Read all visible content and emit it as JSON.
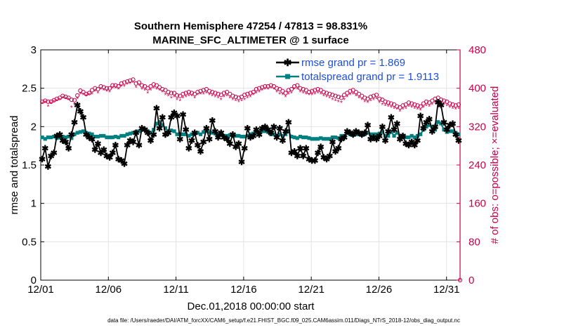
{
  "chart_data": {
    "type": "line",
    "title_line1": "Southern Hemisphere 47254 / 47813 = 98.831%",
    "title_line2": "MARINE_SFC_ALTIMETER @ 1 surface",
    "xlabel": "Dec.01,2018 00:00:00 start",
    "ylabel_left": "rmse and totalspread",
    "ylabel_right": "# of obs: o=possible; ×=evaluated",
    "footer": "data file: /Users/raeder/DAI/ATM_forcXX/CAM6_setup/f.e21.FHIST_BGC.f09_025.CAM6assim.011/Diags_NTrS_2018-12/obs_diag_output.nc",
    "x_ticks": [
      "12/01",
      "12/06",
      "12/11",
      "12/16",
      "12/21",
      "12/26",
      "12/31"
    ],
    "x_tick_days": [
      1,
      6,
      11,
      16,
      21,
      26,
      31
    ],
    "xlim": [
      1,
      32
    ],
    "ylim_left": [
      0,
      3
    ],
    "ylim_right": [
      0,
      480
    ],
    "y_ticks_left": [
      "0",
      "0.5",
      "1",
      "1.5",
      "2",
      "2.5",
      "3"
    ],
    "y_ticks_right": [
      "0",
      "80",
      "160",
      "240",
      "320",
      "400",
      "480"
    ],
    "grid": true,
    "legend_position": "top-right",
    "colors": {
      "rmse": "#000000",
      "spread": "#008080",
      "obs": "#c8004a",
      "legend_text": "#1d4fd6"
    },
    "series": [
      {
        "name": "rmse",
        "legend": "rmse grand pr = 1.869",
        "color": "#000000",
        "values": [
          1.58,
          1.72,
          1.48,
          1.62,
          1.66,
          1.88,
          1.9,
          1.82,
          1.8,
          1.72,
          1.9,
          2.06,
          2.28,
          2.2,
          2.12,
          1.9,
          1.86,
          1.84,
          1.7,
          1.78,
          1.66,
          1.7,
          1.62,
          1.6,
          1.66,
          1.76,
          1.58,
          1.56,
          1.52,
          1.76,
          1.82,
          1.8,
          1.92,
          1.76,
          1.98,
          1.96,
          1.92,
          1.82,
          1.9,
          2.24,
          1.98,
          2.12,
          1.9,
          1.92,
          2.12,
          2.18,
          2.14,
          1.84,
          2.16,
          1.96,
          1.72,
          1.82,
          1.92,
          1.76,
          1.68,
          1.8,
          1.98,
          1.84,
          2.08,
          1.94,
          1.86,
          1.92,
          1.86,
          1.84,
          1.78,
          1.9,
          1.74,
          1.78,
          1.54,
          1.72,
          1.98,
          1.86,
          1.88,
          1.96,
          1.9,
          1.98,
          2.0,
          1.96,
          1.92,
          2.0,
          1.86,
          1.98,
          1.82,
          1.94,
          2.06,
          1.66,
          1.68,
          1.62,
          1.72,
          1.62,
          1.72,
          1.58,
          1.56,
          1.56,
          1.66,
          1.74,
          1.6,
          1.58,
          1.62,
          1.8,
          1.68,
          1.72,
          1.84,
          1.86,
          1.94,
          1.92,
          1.9,
          1.94,
          1.92,
          1.9,
          1.92,
          2.02,
          1.84,
          1.86,
          1.84,
          1.88,
          2.0,
          1.82,
          1.94,
          2.12,
          1.96,
          2.04,
          1.84,
          1.88,
          1.78,
          1.76,
          1.8,
          1.76,
          1.82,
          2.14,
          1.98,
          2.06,
          2.1,
          1.94,
          2.0,
          2.32,
          2.28,
          2.06,
          1.96,
          2.02,
          2.04,
          1.9,
          1.82
        ]
      },
      {
        "name": "totalspread",
        "legend": "totalspread grand pr = 1.9113",
        "color": "#008080",
        "values": [
          1.86,
          1.84,
          1.86,
          1.86,
          1.87,
          1.85,
          1.86,
          1.87,
          1.86,
          1.87,
          1.85,
          1.9,
          1.92,
          1.93,
          1.94,
          1.92,
          1.91,
          1.9,
          1.87,
          1.87,
          1.88,
          1.88,
          1.86,
          1.86,
          1.86,
          1.87,
          1.86,
          1.88,
          1.88,
          1.9,
          1.91,
          1.92,
          1.93,
          1.94,
          1.96,
          1.96,
          1.94,
          1.92,
          1.96,
          2.04,
          2.06,
          2.02,
          1.98,
          1.94,
          1.95,
          1.94,
          1.9,
          1.9,
          1.9,
          1.9,
          1.88,
          1.9,
          1.91,
          1.92,
          1.9,
          1.93,
          1.94,
          1.93,
          1.92,
          1.91,
          1.9,
          1.89,
          1.88,
          1.88,
          1.89,
          1.88,
          1.88,
          1.88,
          1.87,
          1.87,
          1.88,
          1.9,
          1.91,
          1.92,
          1.93,
          1.94,
          1.94,
          1.93,
          1.9,
          1.9,
          1.88,
          1.9,
          1.88,
          1.9,
          1.94,
          1.87,
          1.86,
          1.85,
          1.87,
          1.86,
          1.86,
          1.85,
          1.84,
          1.84,
          1.84,
          1.85,
          1.84,
          1.84,
          1.84,
          1.86,
          1.86,
          1.85,
          1.88,
          1.88,
          1.92,
          1.9,
          1.89,
          1.9,
          1.9,
          1.89,
          1.9,
          1.92,
          1.9,
          1.9,
          1.9,
          1.91,
          1.93,
          1.88,
          1.88,
          1.93,
          1.88,
          1.92,
          1.88,
          1.88,
          1.86,
          1.86,
          1.88,
          1.86,
          1.88,
          1.9,
          1.96,
          2.0,
          2.02,
          2.0,
          1.96,
          2.06,
          2.04,
          1.96,
          1.93,
          1.94,
          1.94,
          1.92,
          1.9
        ]
      },
      {
        "name": "obs_possible",
        "color": "#c8004a",
        "values": [
          372,
          374,
          372,
          372,
          375,
          378,
          380,
          384,
          382,
          380,
          376,
          375,
          385,
          395,
          392,
          388,
          390,
          396,
          400,
          398,
          404,
          402,
          400,
          400,
          406,
          406,
          404,
          410,
          412,
          414,
          416,
          418,
          410,
          412,
          406,
          404,
          400,
          404,
          408,
          406,
          402,
          398,
          396,
          392,
          390,
          390,
          385,
          384,
          388,
          390,
          392,
          390,
          388,
          392,
          394,
          396,
          398,
          394,
          392,
          390,
          388,
          386,
          390,
          392,
          388,
          384,
          382,
          380,
          382,
          386,
          388,
          390,
          392,
          398,
          400,
          402,
          404,
          404,
          406,
          404,
          400,
          398,
          394,
          390,
          396,
          398,
          404,
          406,
          400,
          398,
          396,
          392,
          394,
          396,
          398,
          396,
          392,
          390,
          388,
          386,
          384,
          382,
          380,
          386,
          390,
          394,
          396,
          392,
          388,
          384,
          380,
          378,
          382,
          384,
          386,
          378,
          376,
          372,
          370,
          368,
          366,
          362,
          360,
          364,
          366,
          370,
          368,
          366,
          364,
          362,
          368,
          372,
          370,
          374,
          378,
          380,
          376,
          374,
          372,
          368,
          366,
          364,
          366
        ]
      },
      {
        "name": "obs_evaluated",
        "color": "#c8004a",
        "values": [
          368,
          370,
          362,
          368,
          372,
          374,
          376,
          380,
          378,
          376,
          360,
          366,
          378,
          388,
          386,
          384,
          386,
          388,
          394,
          390,
          398,
          396,
          394,
          392,
          400,
          400,
          398,
          404,
          404,
          408,
          410,
          412,
          402,
          406,
          398,
          396,
          390,
          396,
          400,
          398,
          396,
          392,
          386,
          384,
          380,
          382,
          376,
          374,
          380,
          382,
          384,
          384,
          380,
          386,
          388,
          388,
          390,
          386,
          384,
          382,
          380,
          376,
          382,
          384,
          380,
          376,
          374,
          372,
          374,
          376,
          380,
          382,
          386,
          390,
          392,
          396,
          398,
          398,
          400,
          398,
          392,
          388,
          386,
          382,
          388,
          390,
          398,
          398,
          392,
          390,
          388,
          386,
          386,
          388,
          390,
          388,
          384,
          382,
          380,
          376,
          374,
          372,
          370,
          376,
          382,
          386,
          388,
          384,
          380,
          376,
          372,
          370,
          374,
          376,
          378,
          370,
          366,
          364,
          362,
          360,
          358,
          356,
          352,
          356,
          358,
          362,
          360,
          358,
          356,
          354,
          360,
          364,
          362,
          366,
          370,
          372,
          368,
          366,
          364,
          360,
          358,
          356,
          358
        ]
      }
    ]
  }
}
